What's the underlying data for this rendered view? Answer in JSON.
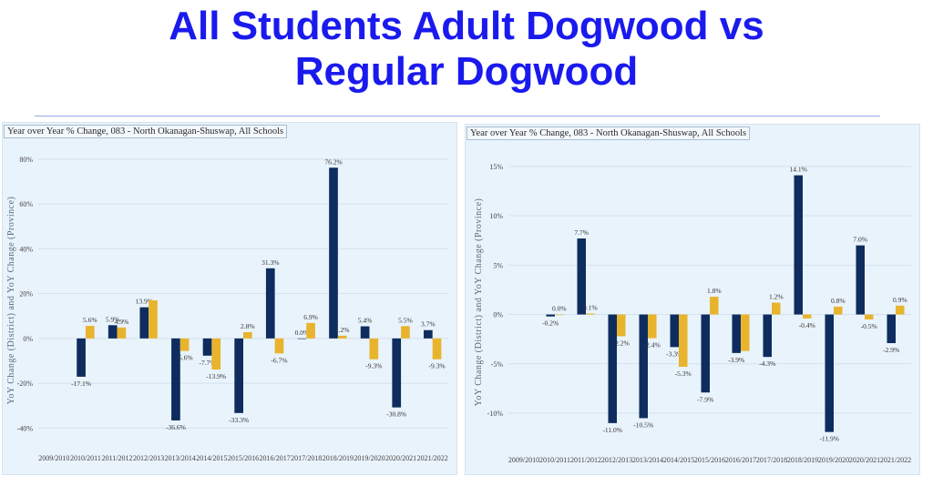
{
  "title_line1": "All Students Adult Dogwood vs",
  "title_line2": "Regular Dogwood",
  "colors": {
    "title": "#1a1aee",
    "district": "#0e2d5e",
    "province": "#e8b42e",
    "panel_bg": "#e9f3fb"
  },
  "chart_data": [
    {
      "type": "bar",
      "title": "Year over Year % Change, 083 - North Okanagan-Shuswap, All Schools",
      "ylabel": "YoY Change (District) and YoY Change (Province)",
      "ylim": [
        -48,
        82
      ],
      "yticks": [
        80,
        60,
        40,
        20,
        0,
        -20,
        -40
      ],
      "ytick_labels": [
        "80%",
        "60%",
        "40%",
        "20%",
        "0%",
        "-20%",
        "-40%"
      ],
      "categories": [
        "2009/2010",
        "2010/2011",
        "2011/2012",
        "2012/2013",
        "2013/2014",
        "2014/2015",
        "2015/2016",
        "2016/2017",
        "2017/2018",
        "2018/2019",
        "2019/2020",
        "2020/2021",
        "2021/2022"
      ],
      "series": [
        {
          "values": [
            null,
            -17.1,
            5.9,
            13.9,
            -36.6,
            -7.7,
            -33.3,
            31.3,
            0.0,
            76.2,
            5.4,
            -30.8,
            3.7
          ],
          "labels": [
            "",
            "-17.1%",
            "5.9%",
            "13.9%",
            "-36.6%",
            "-7.7%",
            "-33.3%",
            "31.3%",
            "0.0%",
            "76.2%",
            "5.4%",
            "-30.8%",
            "3.7%"
          ]
        },
        {
          "values": [
            null,
            5.6,
            4.9,
            17.0,
            -5.6,
            -13.9,
            2.8,
            -6.7,
            6.9,
            1.2,
            -9.3,
            5.5,
            -9.3
          ],
          "labels": [
            "",
            "5.6%",
            "4.9%",
            "",
            "-5.6%",
            "-13.9%",
            "2.8%",
            "-6.7%",
            "6.9%",
            "1.2%",
            "-9.3%",
            "5.5%",
            "-9.3%"
          ]
        }
      ]
    },
    {
      "type": "bar",
      "title": "Year over Year % Change, 083 - North Okanagan-Shuswap, All Schools",
      "ylabel": "YoY Change (District) and YoY Change (Province)",
      "ylim": [
        -13.5,
        16
      ],
      "yticks": [
        15,
        10,
        5,
        0,
        -5,
        -10
      ],
      "ytick_labels": [
        "15%",
        "10%",
        "5%",
        "0%",
        "-5%",
        "-10%"
      ],
      "categories": [
        "2009/2010",
        "2010/2011",
        "2011/2012",
        "2012/2013",
        "2013/2014",
        "2014/2015",
        "2015/2016",
        "2016/2017",
        "2017/2018",
        "2018/2019",
        "2019/2020",
        "2020/2021",
        "2021/2022"
      ],
      "series": [
        {
          "values": [
            null,
            -0.2,
            7.7,
            -11.0,
            -10.5,
            -3.3,
            -7.9,
            -3.9,
            -4.3,
            14.1,
            -11.9,
            7.0,
            -2.9
          ],
          "labels": [
            "",
            "-0.2%",
            "7.7%",
            "-11.0%",
            "-10.5%",
            "-3.3%",
            "-7.9%",
            "-3.9%",
            "-4.3%",
            "14.1%",
            "-11.9%",
            "7.0%",
            "-2.9%"
          ]
        },
        {
          "values": [
            null,
            0.0,
            0.1,
            -2.2,
            -2.4,
            -5.3,
            1.8,
            -3.7,
            1.2,
            -0.4,
            0.8,
            -0.5,
            0.9
          ],
          "labels": [
            "",
            "0.0%",
            "0.1%",
            "-2.2%",
            "-2.4%",
            "-5.3%",
            "1.8%",
            "",
            "1.2%",
            "-0.4%",
            "0.8%",
            "-0.5%",
            "0.9%"
          ]
        }
      ]
    }
  ]
}
